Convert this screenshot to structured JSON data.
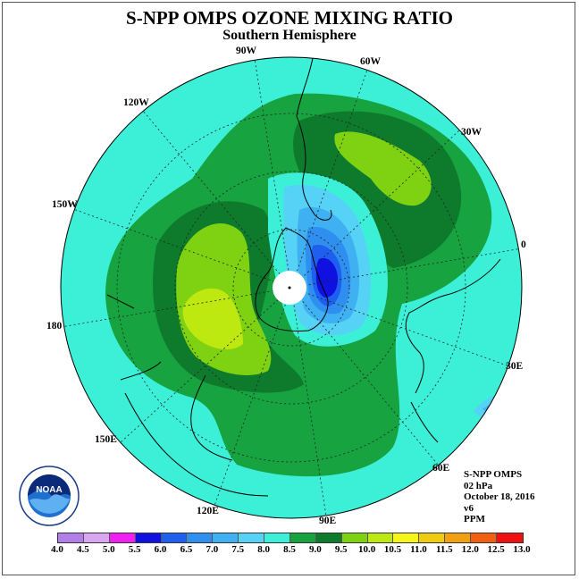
{
  "title": "S-NPP OMPS OZONE MIXING RATIO",
  "subtitle": "Southern Hemisphere",
  "longitude_labels": [
    "90W",
    "60W",
    "30W",
    "0",
    "30E",
    "60E",
    "90E",
    "120E",
    "150E",
    "180",
    "150W",
    "120W"
  ],
  "info": {
    "instrument": "S-NPP OMPS",
    "level": "02 hPa",
    "date": "October 18, 2016",
    "version": "v6",
    "units": "PPM"
  },
  "logo_text": "NOAA",
  "colorbar": {
    "ticks": [
      "4.0",
      "4.5",
      "5.0",
      "5.5",
      "6.0",
      "6.5",
      "7.0",
      "7.5",
      "8.0",
      "8.5",
      "9.0",
      "9.5",
      "10.0",
      "10.5",
      "11.0",
      "11.5",
      "12.0",
      "12.5",
      "13.0"
    ],
    "colors": [
      "#b27fe8",
      "#d9a6f2",
      "#f21ff2",
      "#1010e0",
      "#1f5ff0",
      "#2f8ff0",
      "#3fb0f2",
      "#55d2f5",
      "#3cf0d8",
      "#17a340",
      "#0d7a2c",
      "#7fd212",
      "#bde810",
      "#f5f518",
      "#f0cc10",
      "#f0a010",
      "#f06010",
      "#f01010",
      "#8b5a3c"
    ]
  },
  "map_colors": {
    "background_level": "#3cf0d8",
    "land_outline": "#000000"
  }
}
